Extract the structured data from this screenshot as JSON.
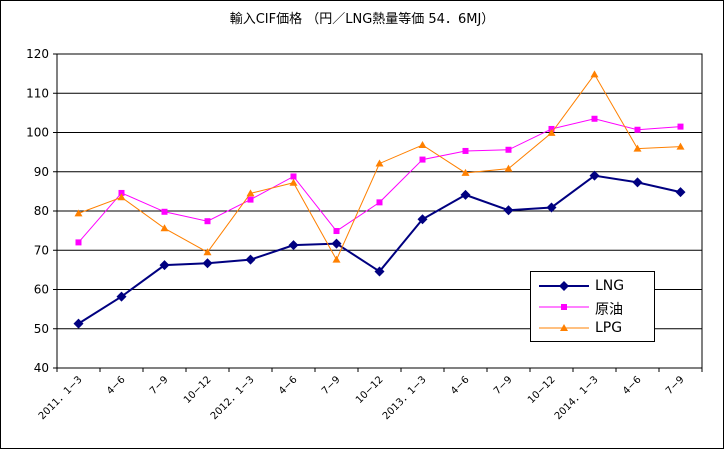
{
  "chart_data": {
    "type": "line",
    "title": "輸入CIF価格 （円／LNG熱量等価 54．6MJ）",
    "categories": [
      "2011．1−3",
      "4−6",
      "7−9",
      "10−12",
      "2012．1−3",
      "4−6",
      "7−9",
      "10−12",
      "2013．1−3",
      "4−6",
      "7−9",
      "10−12",
      "2014．1−3",
      "4−6",
      "7−9"
    ],
    "ylim": [
      40,
      120
    ],
    "yticks": [
      40,
      50,
      60,
      70,
      80,
      90,
      100,
      110,
      120
    ],
    "grid": "horizontal",
    "legend_position": "bottom-right",
    "series": [
      {
        "name": "LNG",
        "color": "#000080",
        "marker": "diamond",
        "values": [
          51.3,
          58.2,
          66.2,
          66.7,
          67.6,
          71.3,
          71.7,
          64.6,
          77.9,
          84.1,
          80.2,
          80.9,
          89.0,
          87.3,
          84.8
        ]
      },
      {
        "name": "原油",
        "color": "#ff00ff",
        "marker": "square",
        "values": [
          72.0,
          84.6,
          79.8,
          77.4,
          82.9,
          88.8,
          74.9,
          82.2,
          93.1,
          95.3,
          95.6,
          100.9,
          103.5,
          100.7,
          101.5
        ]
      },
      {
        "name": "LPG",
        "color": "#ff8000",
        "marker": "triangle",
        "values": [
          79.4,
          83.5,
          75.6,
          69.5,
          84.5,
          87.2,
          67.6,
          92.1,
          96.8,
          89.7,
          90.8,
          99.9,
          114.8,
          95.9,
          96.4
        ]
      }
    ]
  }
}
